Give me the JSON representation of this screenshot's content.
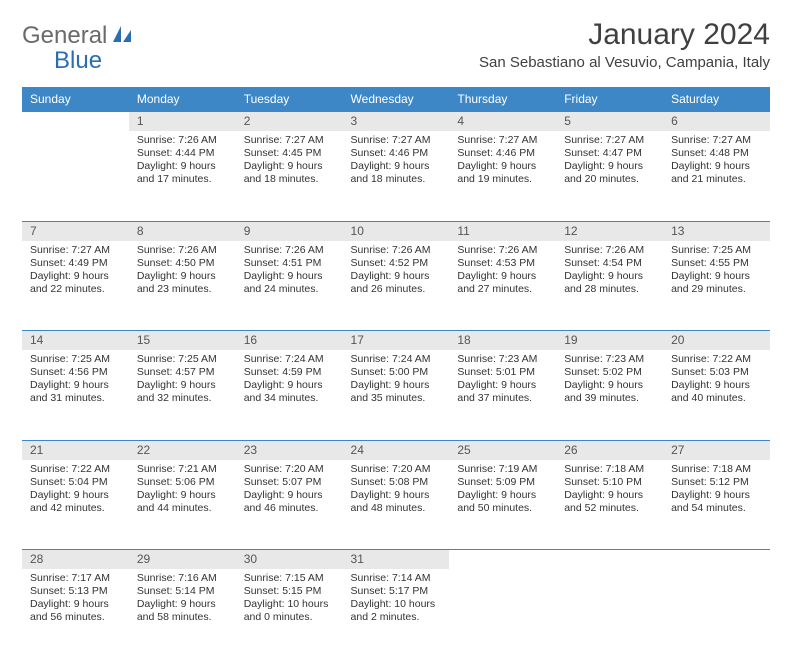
{
  "logo": {
    "text1": "General",
    "text2": "Blue"
  },
  "title": "January 2024",
  "location": "San Sebastiano al Vesuvio, Campania, Italy",
  "day_headers": [
    "Sunday",
    "Monday",
    "Tuesday",
    "Wednesday",
    "Thursday",
    "Friday",
    "Saturday"
  ],
  "colors": {
    "header_bg": "#3d87c7",
    "daynum_bg": "#e8e8e8",
    "accent": "#2a6db5",
    "logo_gray": "#6a6a6a"
  },
  "weeks": [
    [
      null,
      {
        "n": "1",
        "sr": "Sunrise: 7:26 AM",
        "ss": "Sunset: 4:44 PM",
        "dl": "Daylight: 9 hours and 17 minutes."
      },
      {
        "n": "2",
        "sr": "Sunrise: 7:27 AM",
        "ss": "Sunset: 4:45 PM",
        "dl": "Daylight: 9 hours and 18 minutes."
      },
      {
        "n": "3",
        "sr": "Sunrise: 7:27 AM",
        "ss": "Sunset: 4:46 PM",
        "dl": "Daylight: 9 hours and 18 minutes."
      },
      {
        "n": "4",
        "sr": "Sunrise: 7:27 AM",
        "ss": "Sunset: 4:46 PM",
        "dl": "Daylight: 9 hours and 19 minutes."
      },
      {
        "n": "5",
        "sr": "Sunrise: 7:27 AM",
        "ss": "Sunset: 4:47 PM",
        "dl": "Daylight: 9 hours and 20 minutes."
      },
      {
        "n": "6",
        "sr": "Sunrise: 7:27 AM",
        "ss": "Sunset: 4:48 PM",
        "dl": "Daylight: 9 hours and 21 minutes."
      }
    ],
    [
      {
        "n": "7",
        "sr": "Sunrise: 7:27 AM",
        "ss": "Sunset: 4:49 PM",
        "dl": "Daylight: 9 hours and 22 minutes."
      },
      {
        "n": "8",
        "sr": "Sunrise: 7:26 AM",
        "ss": "Sunset: 4:50 PM",
        "dl": "Daylight: 9 hours and 23 minutes."
      },
      {
        "n": "9",
        "sr": "Sunrise: 7:26 AM",
        "ss": "Sunset: 4:51 PM",
        "dl": "Daylight: 9 hours and 24 minutes."
      },
      {
        "n": "10",
        "sr": "Sunrise: 7:26 AM",
        "ss": "Sunset: 4:52 PM",
        "dl": "Daylight: 9 hours and 26 minutes."
      },
      {
        "n": "11",
        "sr": "Sunrise: 7:26 AM",
        "ss": "Sunset: 4:53 PM",
        "dl": "Daylight: 9 hours and 27 minutes."
      },
      {
        "n": "12",
        "sr": "Sunrise: 7:26 AM",
        "ss": "Sunset: 4:54 PM",
        "dl": "Daylight: 9 hours and 28 minutes."
      },
      {
        "n": "13",
        "sr": "Sunrise: 7:25 AM",
        "ss": "Sunset: 4:55 PM",
        "dl": "Daylight: 9 hours and 29 minutes."
      }
    ],
    [
      {
        "n": "14",
        "sr": "Sunrise: 7:25 AM",
        "ss": "Sunset: 4:56 PM",
        "dl": "Daylight: 9 hours and 31 minutes."
      },
      {
        "n": "15",
        "sr": "Sunrise: 7:25 AM",
        "ss": "Sunset: 4:57 PM",
        "dl": "Daylight: 9 hours and 32 minutes."
      },
      {
        "n": "16",
        "sr": "Sunrise: 7:24 AM",
        "ss": "Sunset: 4:59 PM",
        "dl": "Daylight: 9 hours and 34 minutes."
      },
      {
        "n": "17",
        "sr": "Sunrise: 7:24 AM",
        "ss": "Sunset: 5:00 PM",
        "dl": "Daylight: 9 hours and 35 minutes."
      },
      {
        "n": "18",
        "sr": "Sunrise: 7:23 AM",
        "ss": "Sunset: 5:01 PM",
        "dl": "Daylight: 9 hours and 37 minutes."
      },
      {
        "n": "19",
        "sr": "Sunrise: 7:23 AM",
        "ss": "Sunset: 5:02 PM",
        "dl": "Daylight: 9 hours and 39 minutes."
      },
      {
        "n": "20",
        "sr": "Sunrise: 7:22 AM",
        "ss": "Sunset: 5:03 PM",
        "dl": "Daylight: 9 hours and 40 minutes."
      }
    ],
    [
      {
        "n": "21",
        "sr": "Sunrise: 7:22 AM",
        "ss": "Sunset: 5:04 PM",
        "dl": "Daylight: 9 hours and 42 minutes."
      },
      {
        "n": "22",
        "sr": "Sunrise: 7:21 AM",
        "ss": "Sunset: 5:06 PM",
        "dl": "Daylight: 9 hours and 44 minutes."
      },
      {
        "n": "23",
        "sr": "Sunrise: 7:20 AM",
        "ss": "Sunset: 5:07 PM",
        "dl": "Daylight: 9 hours and 46 minutes."
      },
      {
        "n": "24",
        "sr": "Sunrise: 7:20 AM",
        "ss": "Sunset: 5:08 PM",
        "dl": "Daylight: 9 hours and 48 minutes."
      },
      {
        "n": "25",
        "sr": "Sunrise: 7:19 AM",
        "ss": "Sunset: 5:09 PM",
        "dl": "Daylight: 9 hours and 50 minutes."
      },
      {
        "n": "26",
        "sr": "Sunrise: 7:18 AM",
        "ss": "Sunset: 5:10 PM",
        "dl": "Daylight: 9 hours and 52 minutes."
      },
      {
        "n": "27",
        "sr": "Sunrise: 7:18 AM",
        "ss": "Sunset: 5:12 PM",
        "dl": "Daylight: 9 hours and 54 minutes."
      }
    ],
    [
      {
        "n": "28",
        "sr": "Sunrise: 7:17 AM",
        "ss": "Sunset: 5:13 PM",
        "dl": "Daylight: 9 hours and 56 minutes."
      },
      {
        "n": "29",
        "sr": "Sunrise: 7:16 AM",
        "ss": "Sunset: 5:14 PM",
        "dl": "Daylight: 9 hours and 58 minutes."
      },
      {
        "n": "30",
        "sr": "Sunrise: 7:15 AM",
        "ss": "Sunset: 5:15 PM",
        "dl": "Daylight: 10 hours and 0 minutes."
      },
      {
        "n": "31",
        "sr": "Sunrise: 7:14 AM",
        "ss": "Sunset: 5:17 PM",
        "dl": "Daylight: 10 hours and 2 minutes."
      },
      null,
      null,
      null
    ]
  ]
}
